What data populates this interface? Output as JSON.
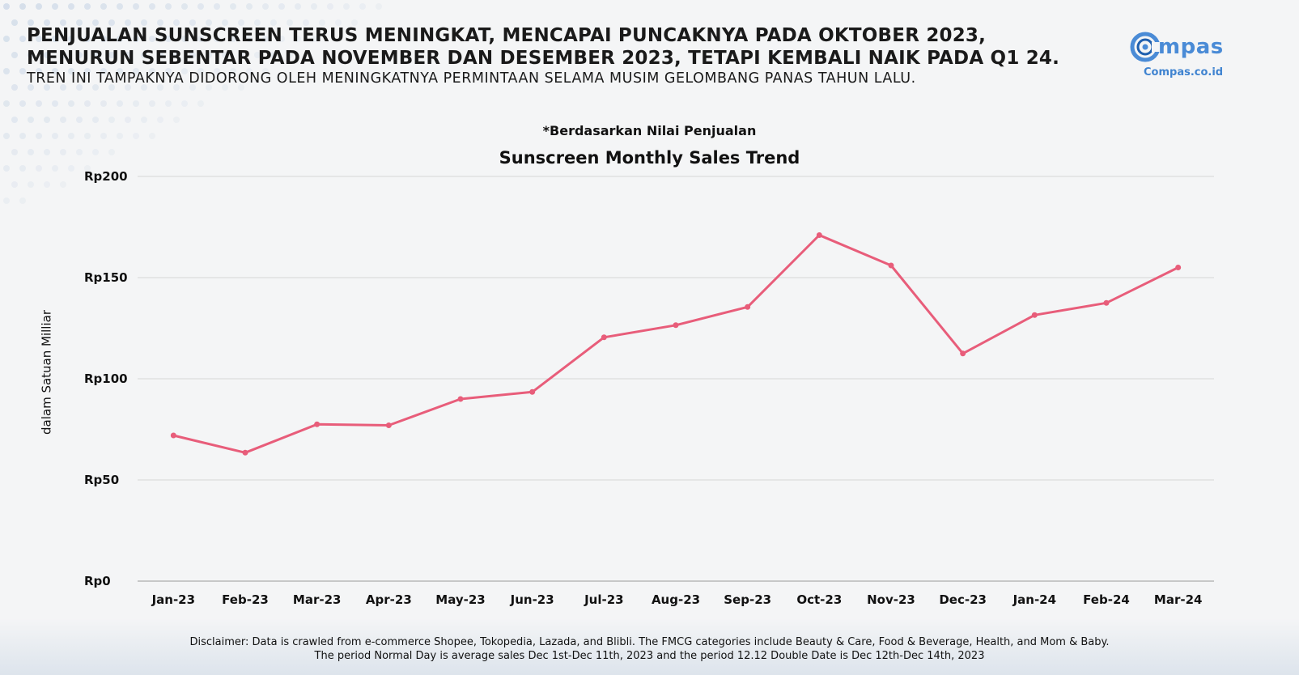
{
  "header": {
    "headline_line1": "PENJUALAN SUNSCREEN TERUS MENINGKAT, MENCAPAI PUNCAKNYA PADA  OKTOBER 2023,",
    "headline_line2": "MENURUN SEBENTAR PADA NOVEMBER DAN  DESEMBER 2023, TETAPI KEMBALI NAIK PADA Q1 24.",
    "subheadline": "TREN INI TAMPAKNYA DIDORONG OLEH MENINGKATNYA PERMINTAAN SELAMA MUSIM GELOMBANG PANAS TAHUN LALU."
  },
  "brand": {
    "logo_text": "mpas",
    "site": "Compas.co.id",
    "color": "#4a8bd6"
  },
  "note": "*Berdasarkan Nilai Penjualan",
  "disclaimer": {
    "line1": "Disclaimer: Data is crawled from e-commerce Shopee, Tokopedia, Lazada, and Blibli. The FMCG categories include Beauty & Care, Food & Beverage, Health, and Mom & Baby.",
    "line2": "The period Normal Day is average sales Dec 1st-Dec 11th, 2023 and the period 12.12 Double Date is Dec 12th-Dec 14th, 2023"
  },
  "chart_data": {
    "type": "line",
    "title": "Sunscreen Monthly Sales Trend",
    "xlabel": "",
    "ylabel": "dalam Satuan Milliar",
    "categories": [
      "Jan-23",
      "Feb-23",
      "Mar-23",
      "Apr-23",
      "May-23",
      "Jun-23",
      "Jul-23",
      "Aug-23",
      "Sep-23",
      "Oct-23",
      "Nov-23",
      "Dec-23",
      "Jan-24",
      "Feb-24",
      "Mar-24"
    ],
    "series": [
      {
        "values": [
          72,
          63.5,
          77.5,
          77,
          90,
          93.5,
          120.5,
          126.5,
          135.5,
          171,
          156,
          112.5,
          131.5,
          137.5,
          155
        ],
        "color": "#e85d7a"
      }
    ],
    "ylim": [
      0,
      200
    ],
    "yticks": [
      0,
      50,
      100,
      150,
      200
    ],
    "ytick_labels": [
      "Rp0",
      "Rp50",
      "Rp100",
      "Rp150",
      "Rp200"
    ],
    "grid": true,
    "legend": "none"
  }
}
